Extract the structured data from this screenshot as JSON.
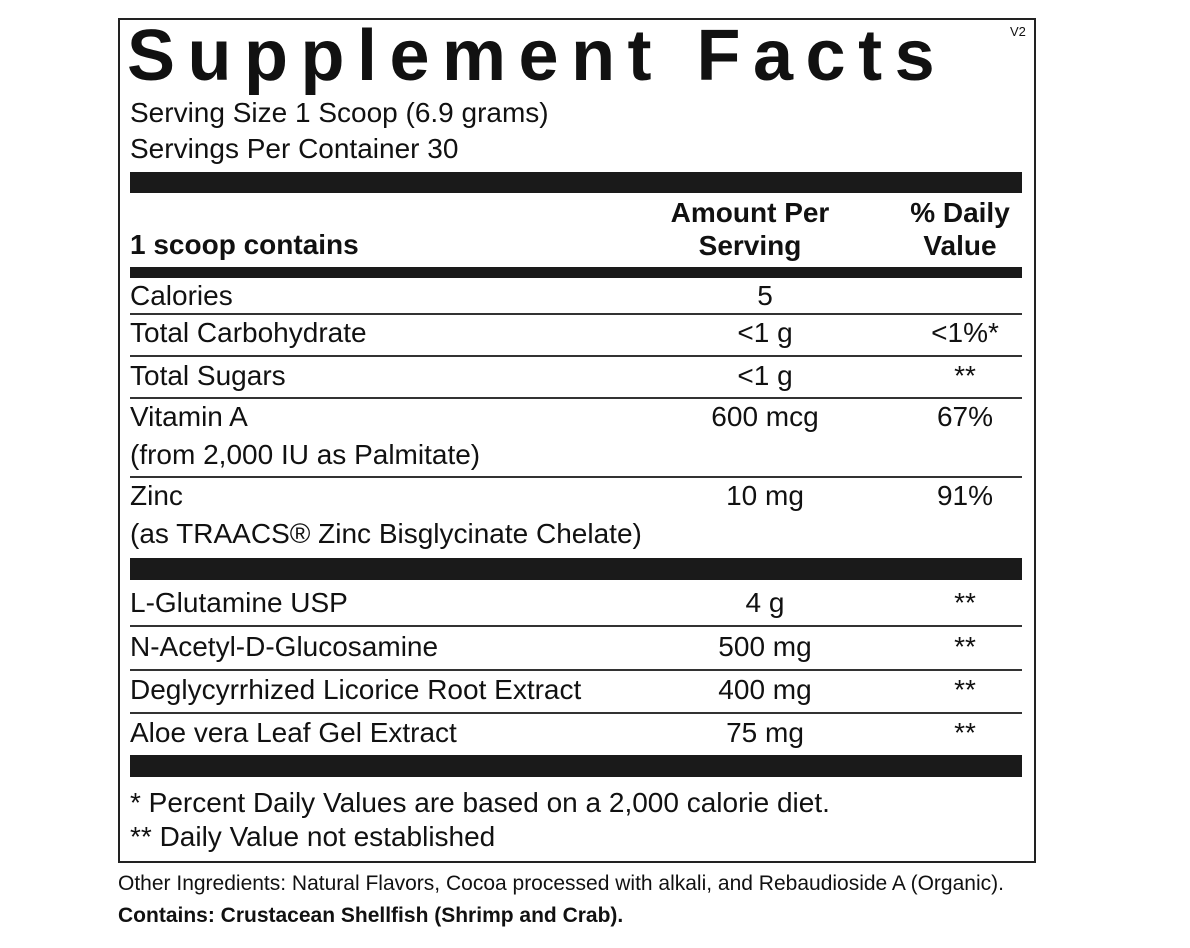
{
  "header": {
    "title": "Supplement Facts",
    "version": "V2",
    "serving_size": "Serving Size 1 Scoop (6.9 grams)",
    "servings_per_container": "Servings Per Container 30"
  },
  "table": {
    "columns": [
      "1 scoop contains",
      "Amount Per Serving",
      "% Daily Value"
    ],
    "rows": [
      {
        "name": "Calories",
        "amount": "5"
      },
      {
        "name": "Total Carbohydrate",
        "amount": "<1 g",
        "daily_value": "<1%*"
      },
      {
        "name": "Total Sugars",
        "amount": "<1 g",
        "daily_value": "**"
      },
      {
        "name": "Vitamin A",
        "detail": "(from 2,000 IU as Palmitate)",
        "amount": "600 mcg",
        "daily_value": "67%"
      },
      {
        "name": "Zinc",
        "detail": "(as TRAACS® Zinc Bisglycinate Chelate)",
        "amount": "10 mg",
        "daily_value": "91%"
      },
      {
        "name": "L-Glutamine USP",
        "amount": "4 g",
        "daily_value": "**"
      },
      {
        "name": "N-Acetyl-D-Glucosamine",
        "amount": "500 mg",
        "daily_value": "**"
      },
      {
        "name": "Deglycyrrhized Licorice Root Extract",
        "amount": "400 mg",
        "daily_value": "**"
      },
      {
        "name": "Aloe vera Leaf Gel Extract",
        "amount": "75 mg",
        "daily_value": "**"
      }
    ]
  },
  "footnotes": [
    "* Percent Daily Values are based on a 2,000 calorie diet.",
    "** Daily Value not established"
  ],
  "other_ingredients": "Other Ingredients: Natural Flavors, Cocoa processed with alkali, and Rebaudioside A (Organic).",
  "contains": "Contains: Crustacean Shellfish (Shrimp and Crab)."
}
